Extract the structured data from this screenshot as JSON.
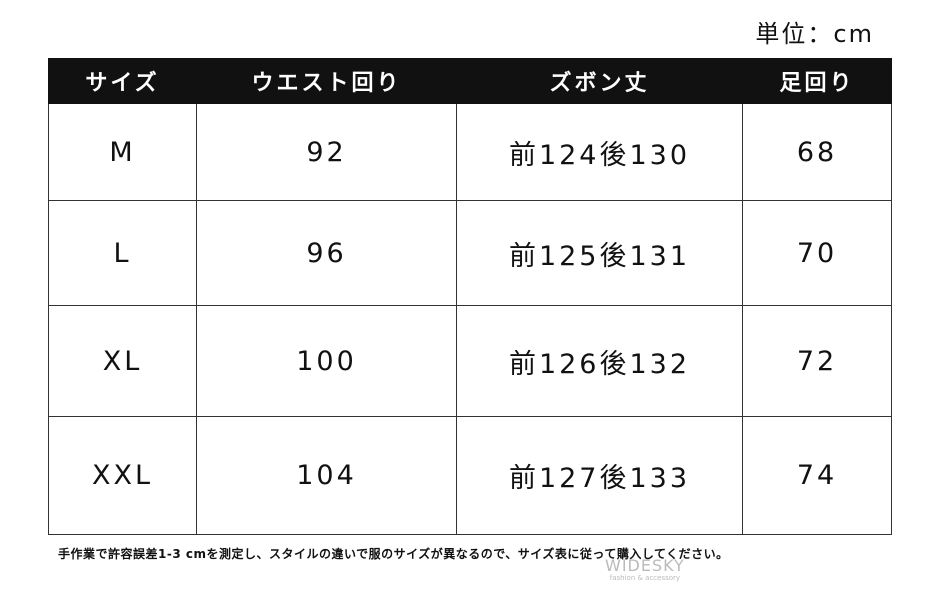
{
  "unit": "単位：cm",
  "table": {
    "header": [
      "サイズ",
      "ウエスト回り",
      "ズボン丈",
      "足回り"
    ],
    "rows": [
      [
        "M",
        "92",
        "前124後130",
        "68"
      ],
      [
        "L",
        "96",
        "前125後131",
        "70"
      ],
      [
        "XL",
        "100",
        "前126後132",
        "72"
      ],
      [
        "XXL",
        "104",
        "前127後133",
        "74"
      ]
    ]
  },
  "note": "手作業で許容誤差1-3 cmを測定し、スタイルの違いで服のサイズが異なるので、サイズ表に従って購入してください。",
  "watermark": {
    "brand": "WIDESKY",
    "tagline": "fashion & accessory"
  }
}
